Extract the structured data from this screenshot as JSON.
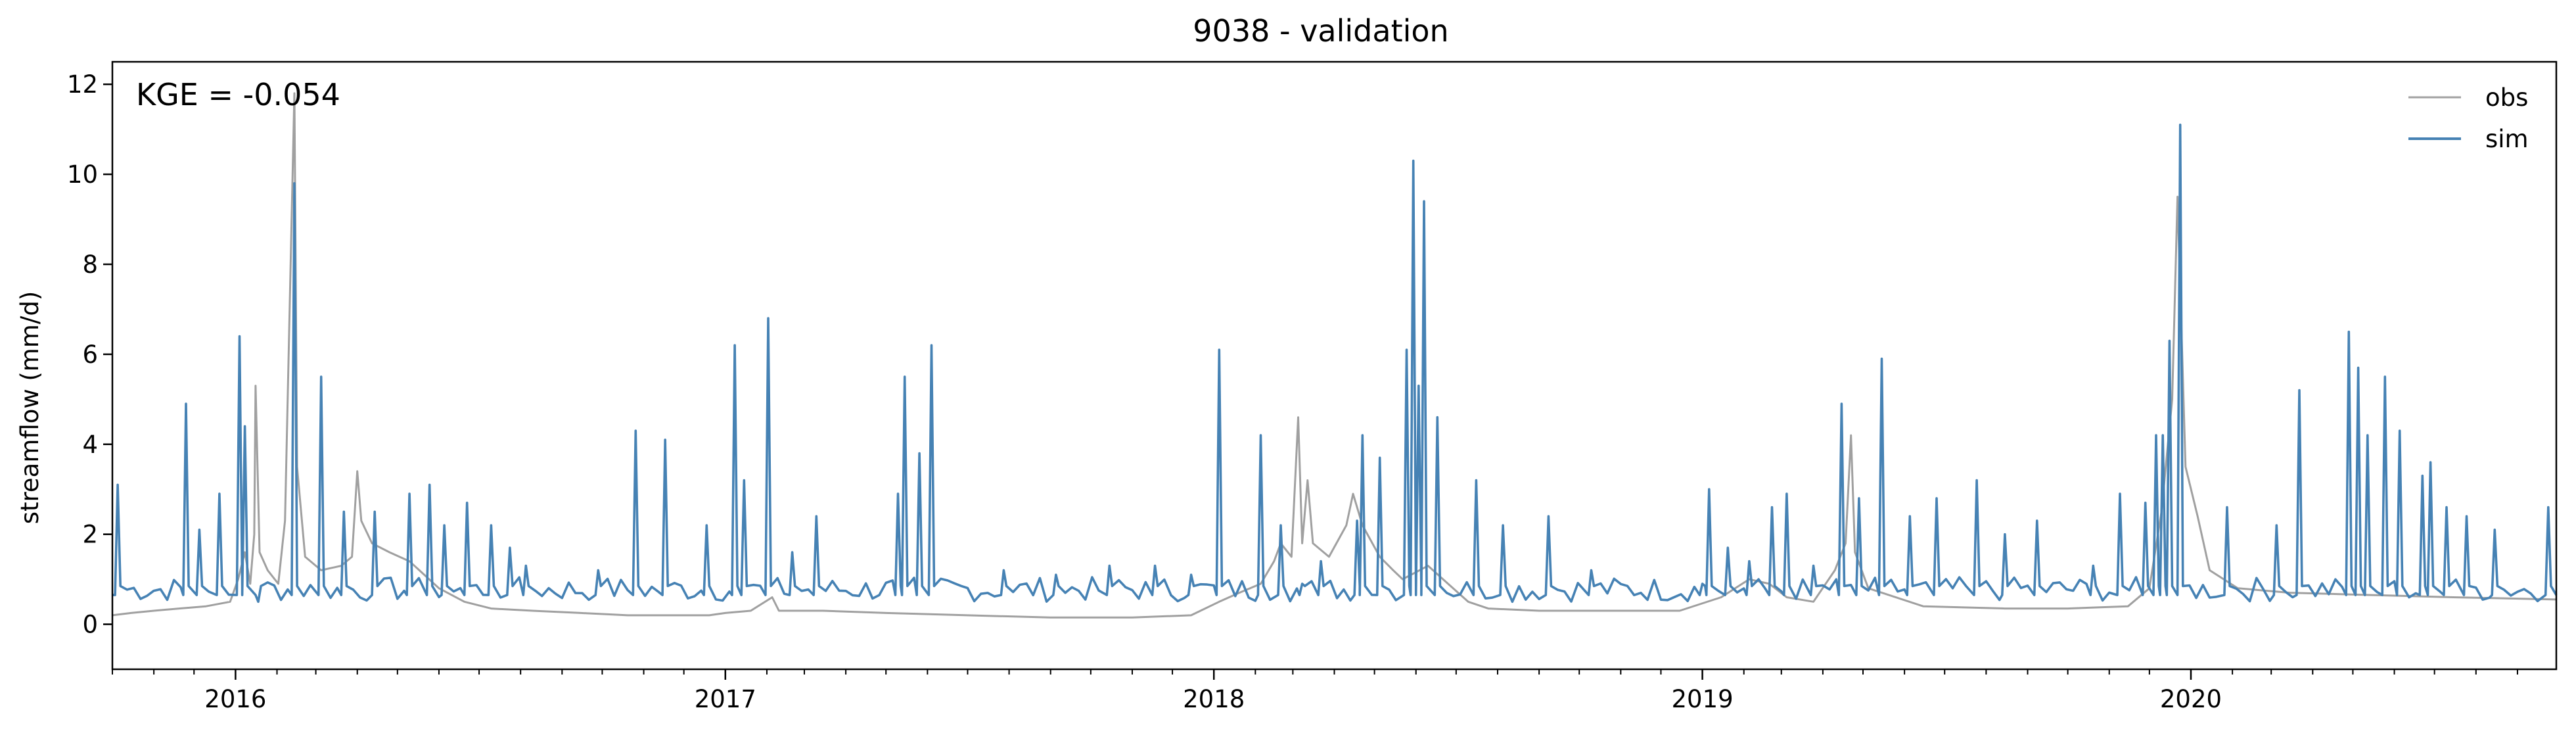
{
  "chart_data": {
    "type": "line",
    "title": "9038 - validation",
    "xlabel": "",
    "ylabel": "streamflow (mm/d)",
    "annotation": "KGE = -0.054",
    "xlim": [
      "2015-10-01",
      "2020-09-30"
    ],
    "ylim": [
      -1,
      12.5
    ],
    "yticks": [
      0,
      2,
      4,
      6,
      8,
      10,
      12
    ],
    "xticks": [
      {
        "date": "2016-01-01",
        "label": "2016"
      },
      {
        "date": "2017-01-01",
        "label": "2017"
      },
      {
        "date": "2018-01-01",
        "label": "2018"
      },
      {
        "date": "2019-01-01",
        "label": "2019"
      },
      {
        "date": "2020-01-01",
        "label": "2020"
      }
    ],
    "grid": false,
    "legend_position": "top-right",
    "series": [
      {
        "name": "obs",
        "color": "#a0a0a0",
        "points": [
          [
            "2015-10-01",
            0.2
          ],
          [
            "2015-10-15",
            0.25
          ],
          [
            "2015-11-01",
            0.3
          ],
          [
            "2015-11-20",
            0.35
          ],
          [
            "2015-12-10",
            0.4
          ],
          [
            "2015-12-28",
            0.5
          ],
          [
            "2016-01-03",
            1.0
          ],
          [
            "2016-01-08",
            1.6
          ],
          [
            "2016-01-12",
            0.9
          ],
          [
            "2016-01-15",
            2.0
          ],
          [
            "2016-01-16",
            5.3
          ],
          [
            "2016-01-19",
            1.6
          ],
          [
            "2016-01-25",
            1.2
          ],
          [
            "2016-02-02",
            0.9
          ],
          [
            "2016-02-07",
            2.3
          ],
          [
            "2016-02-14",
            11.8
          ],
          [
            "2016-02-16",
            3.5
          ],
          [
            "2016-02-22",
            1.5
          ],
          [
            "2016-03-05",
            1.2
          ],
          [
            "2016-03-20",
            1.3
          ],
          [
            "2016-03-28",
            1.5
          ],
          [
            "2016-04-01",
            3.4
          ],
          [
            "2016-04-04",
            2.3
          ],
          [
            "2016-04-12",
            1.8
          ],
          [
            "2016-04-25",
            1.6
          ],
          [
            "2016-05-10",
            1.4
          ],
          [
            "2016-06-01",
            0.8
          ],
          [
            "2016-06-20",
            0.5
          ],
          [
            "2016-07-10",
            0.35
          ],
          [
            "2016-08-10",
            0.3
          ],
          [
            "2016-09-15",
            0.25
          ],
          [
            "2016-10-20",
            0.2
          ],
          [
            "2016-11-20",
            0.2
          ],
          [
            "2016-12-20",
            0.2
          ],
          [
            "2017-01-01",
            0.25
          ],
          [
            "2017-01-20",
            0.3
          ],
          [
            "2017-02-05",
            0.6
          ],
          [
            "2017-02-10",
            0.3
          ],
          [
            "2017-03-15",
            0.3
          ],
          [
            "2017-05-01",
            0.25
          ],
          [
            "2017-07-01",
            0.2
          ],
          [
            "2017-09-01",
            0.15
          ],
          [
            "2017-11-01",
            0.15
          ],
          [
            "2017-12-15",
            0.2
          ],
          [
            "2018-01-05",
            0.5
          ],
          [
            "2018-01-20",
            0.7
          ],
          [
            "2018-02-05",
            0.9
          ],
          [
            "2018-02-15",
            1.4
          ],
          [
            "2018-02-20",
            1.8
          ],
          [
            "2018-02-28",
            1.5
          ],
          [
            "2018-03-05",
            4.6
          ],
          [
            "2018-03-08",
            1.8
          ],
          [
            "2018-03-12",
            3.2
          ],
          [
            "2018-03-16",
            1.8
          ],
          [
            "2018-03-28",
            1.5
          ],
          [
            "2018-04-10",
            2.2
          ],
          [
            "2018-04-15",
            2.9
          ],
          [
            "2018-04-22",
            2.2
          ],
          [
            "2018-05-05",
            1.5
          ],
          [
            "2018-05-15",
            1.2
          ],
          [
            "2018-05-22",
            1.0
          ],
          [
            "2018-06-10",
            1.3
          ],
          [
            "2018-06-25",
            0.9
          ],
          [
            "2018-07-10",
            0.5
          ],
          [
            "2018-07-25",
            0.35
          ],
          [
            "2018-09-01",
            0.3
          ],
          [
            "2018-11-01",
            0.3
          ],
          [
            "2018-12-15",
            0.3
          ],
          [
            "2019-01-15",
            0.6
          ],
          [
            "2019-02-05",
            1.0
          ],
          [
            "2019-02-20",
            0.9
          ],
          [
            "2019-03-05",
            0.6
          ],
          [
            "2019-03-25",
            0.5
          ],
          [
            "2019-04-10",
            1.2
          ],
          [
            "2019-04-18",
            1.8
          ],
          [
            "2019-04-22",
            4.2
          ],
          [
            "2019-04-25",
            1.6
          ],
          [
            "2019-05-05",
            0.8
          ],
          [
            "2019-06-15",
            0.4
          ],
          [
            "2019-08-15",
            0.35
          ],
          [
            "2019-10-01",
            0.35
          ],
          [
            "2019-11-15",
            0.4
          ],
          [
            "2019-12-01",
            0.8
          ],
          [
            "2019-12-10",
            2.5
          ],
          [
            "2019-12-18",
            5.0
          ],
          [
            "2019-12-22",
            9.5
          ],
          [
            "2019-12-28",
            3.5
          ],
          [
            "2020-01-06",
            2.4
          ],
          [
            "2020-01-15",
            1.2
          ],
          [
            "2020-02-05",
            0.8
          ],
          [
            "2020-03-15",
            0.7
          ],
          [
            "2020-05-15",
            0.65
          ],
          [
            "2020-07-15",
            0.6
          ],
          [
            "2020-09-30",
            0.55
          ]
        ]
      },
      {
        "name": "sim",
        "color": "#4682b4",
        "baseline": 0.65,
        "peaks": [
          [
            "2015-10-05",
            3.1
          ],
          [
            "2015-11-25",
            4.9
          ],
          [
            "2015-12-05",
            2.1
          ],
          [
            "2015-12-20",
            2.9
          ],
          [
            "2016-01-04",
            6.4
          ],
          [
            "2016-01-08",
            4.4
          ],
          [
            "2016-01-18",
            0.5
          ],
          [
            "2016-02-14",
            9.8
          ],
          [
            "2016-03-05",
            5.5
          ],
          [
            "2016-03-22",
            2.5
          ],
          [
            "2016-04-14",
            2.5
          ],
          [
            "2016-05-10",
            2.9
          ],
          [
            "2016-05-25",
            3.1
          ],
          [
            "2016-06-05",
            2.2
          ],
          [
            "2016-06-22",
            2.7
          ],
          [
            "2016-07-10",
            2.2
          ],
          [
            "2016-07-24",
            1.7
          ],
          [
            "2016-08-05",
            1.3
          ],
          [
            "2016-09-28",
            1.2
          ],
          [
            "2016-10-26",
            4.3
          ],
          [
            "2016-11-17",
            4.1
          ],
          [
            "2016-12-18",
            2.2
          ],
          [
            "2017-01-08",
            6.2
          ],
          [
            "2017-01-15",
            3.2
          ],
          [
            "2017-02-02",
            6.8
          ],
          [
            "2017-02-20",
            1.6
          ],
          [
            "2017-03-10",
            2.4
          ],
          [
            "2017-05-10",
            2.9
          ],
          [
            "2017-05-15",
            5.5
          ],
          [
            "2017-05-26",
            3.8
          ],
          [
            "2017-06-04",
            6.2
          ],
          [
            "2017-07-28",
            1.2
          ],
          [
            "2017-09-05",
            1.1
          ],
          [
            "2017-10-15",
            1.3
          ],
          [
            "2017-11-18",
            1.3
          ],
          [
            "2017-12-15",
            1.1
          ],
          [
            "2018-01-05",
            6.1
          ],
          [
            "2018-02-05",
            4.2
          ],
          [
            "2018-02-20",
            2.2
          ],
          [
            "2018-03-08",
            0.9
          ],
          [
            "2018-03-22",
            1.4
          ],
          [
            "2018-04-18",
            2.3
          ],
          [
            "2018-04-22",
            4.2
          ],
          [
            "2018-05-05",
            3.7
          ],
          [
            "2018-05-25",
            6.1
          ],
          [
            "2018-05-30",
            10.3
          ],
          [
            "2018-06-03",
            5.3
          ],
          [
            "2018-06-07",
            9.4
          ],
          [
            "2018-06-17",
            4.6
          ],
          [
            "2018-07-16",
            3.2
          ],
          [
            "2018-08-05",
            2.2
          ],
          [
            "2018-09-08",
            2.4
          ],
          [
            "2018-10-10",
            1.2
          ],
          [
            "2019-01-01",
            0.9
          ],
          [
            "2019-01-06",
            3.0
          ],
          [
            "2019-01-20",
            1.7
          ],
          [
            "2019-02-05",
            1.4
          ],
          [
            "2019-02-22",
            2.6
          ],
          [
            "2019-03-05",
            2.9
          ],
          [
            "2019-03-25",
            1.3
          ],
          [
            "2019-04-15",
            4.9
          ],
          [
            "2019-04-28",
            2.8
          ],
          [
            "2019-05-15",
            5.9
          ],
          [
            "2019-06-05",
            2.4
          ],
          [
            "2019-06-25",
            2.8
          ],
          [
            "2019-07-25",
            3.2
          ],
          [
            "2019-08-15",
            2.0
          ],
          [
            "2019-09-08",
            2.3
          ],
          [
            "2019-10-20",
            1.3
          ],
          [
            "2019-11-09",
            2.9
          ],
          [
            "2019-11-28",
            2.7
          ],
          [
            "2019-12-06",
            4.2
          ],
          [
            "2019-12-11",
            4.2
          ],
          [
            "2019-12-16",
            6.3
          ],
          [
            "2019-12-24",
            11.1
          ],
          [
            "2020-01-28",
            2.6
          ],
          [
            "2020-03-05",
            2.2
          ],
          [
            "2020-03-22",
            5.2
          ],
          [
            "2020-04-28",
            6.5
          ],
          [
            "2020-05-05",
            5.7
          ],
          [
            "2020-05-12",
            4.2
          ],
          [
            "2020-05-25",
            5.5
          ],
          [
            "2020-06-05",
            4.3
          ],
          [
            "2020-06-22",
            3.3
          ],
          [
            "2020-06-28",
            3.6
          ],
          [
            "2020-07-10",
            2.6
          ],
          [
            "2020-07-25",
            2.4
          ],
          [
            "2020-08-15",
            2.1
          ],
          [
            "2020-09-24",
            2.6
          ]
        ]
      }
    ]
  }
}
